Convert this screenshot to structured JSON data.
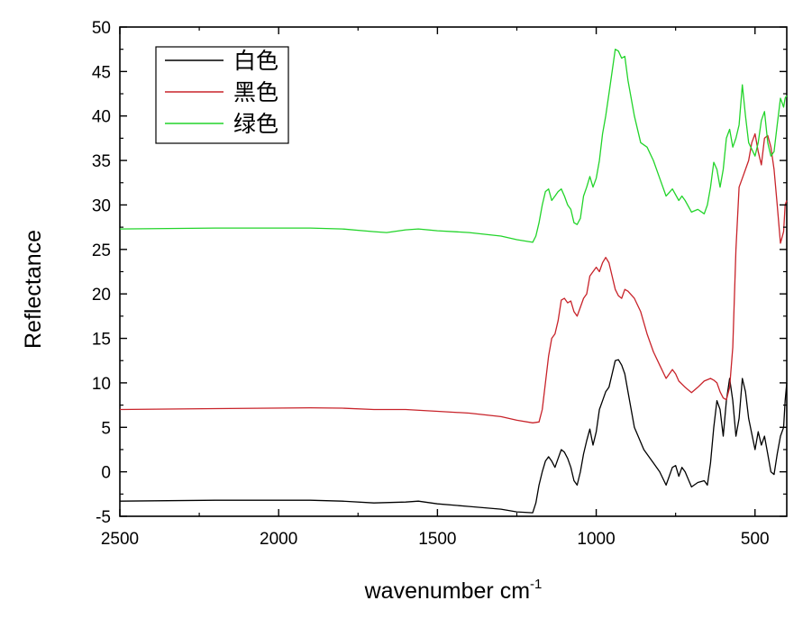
{
  "chart_data": {
    "type": "line",
    "xlabel": "wavenumber cm",
    "xlabel_superscript": "-1",
    "ylabel": "Reflectance",
    "xlim": [
      2500,
      400
    ],
    "ylim": [
      -5,
      50
    ],
    "x_reversed": true,
    "x_ticks": [
      2500,
      2000,
      1500,
      1000,
      500
    ],
    "y_ticks": [
      -5,
      0,
      5,
      10,
      15,
      20,
      25,
      30,
      35,
      40,
      45,
      50
    ],
    "legend_position": "top-left",
    "series": [
      {
        "name": "白色",
        "color": "#000000",
        "points": [
          [
            2500,
            -3.3
          ],
          [
            2200,
            -3.2
          ],
          [
            1900,
            -3.2
          ],
          [
            1800,
            -3.3
          ],
          [
            1700,
            -3.5
          ],
          [
            1600,
            -3.4
          ],
          [
            1560,
            -3.3
          ],
          [
            1500,
            -3.6
          ],
          [
            1400,
            -3.9
          ],
          [
            1300,
            -4.2
          ],
          [
            1250,
            -4.5
          ],
          [
            1200,
            -4.6
          ],
          [
            1190,
            -3.5
          ],
          [
            1180,
            -1.5
          ],
          [
            1170,
            0
          ],
          [
            1160,
            1.2
          ],
          [
            1150,
            1.7
          ],
          [
            1140,
            1.2
          ],
          [
            1130,
            0.5
          ],
          [
            1120,
            1.5
          ],
          [
            1110,
            2.5
          ],
          [
            1100,
            2.2
          ],
          [
            1090,
            1.5
          ],
          [
            1080,
            0.5
          ],
          [
            1070,
            -1
          ],
          [
            1060,
            -1.5
          ],
          [
            1050,
            0
          ],
          [
            1040,
            2
          ],
          [
            1030,
            3.5
          ],
          [
            1020,
            4.8
          ],
          [
            1010,
            3
          ],
          [
            1000,
            4.5
          ],
          [
            990,
            7
          ],
          [
            980,
            8
          ],
          [
            970,
            9
          ],
          [
            960,
            9.5
          ],
          [
            950,
            11
          ],
          [
            940,
            12.5
          ],
          [
            930,
            12.6
          ],
          [
            920,
            12
          ],
          [
            910,
            11
          ],
          [
            900,
            9
          ],
          [
            880,
            5
          ],
          [
            850,
            2.5
          ],
          [
            820,
            1
          ],
          [
            800,
            0
          ],
          [
            780,
            -1.5
          ],
          [
            760,
            0.5
          ],
          [
            750,
            0.7
          ],
          [
            740,
            -0.5
          ],
          [
            730,
            0.5
          ],
          [
            720,
            0
          ],
          [
            700,
            -1.7
          ],
          [
            680,
            -1.2
          ],
          [
            660,
            -1
          ],
          [
            650,
            -1.5
          ],
          [
            640,
            1
          ],
          [
            630,
            5
          ],
          [
            620,
            8
          ],
          [
            610,
            7
          ],
          [
            600,
            4
          ],
          [
            590,
            8
          ],
          [
            580,
            10.5
          ],
          [
            570,
            8
          ],
          [
            560,
            4
          ],
          [
            550,
            6
          ],
          [
            540,
            10.5
          ],
          [
            530,
            9
          ],
          [
            520,
            6
          ],
          [
            500,
            2.5
          ],
          [
            490,
            4.5
          ],
          [
            480,
            3
          ],
          [
            470,
            4
          ],
          [
            460,
            2
          ],
          [
            450,
            0
          ],
          [
            440,
            -0.3
          ],
          [
            430,
            2
          ],
          [
            420,
            4
          ],
          [
            410,
            5
          ],
          [
            405,
            8
          ],
          [
            400,
            10
          ]
        ]
      },
      {
        "name": "黑色",
        "color": "#c8232a",
        "points": [
          [
            2500,
            7
          ],
          [
            2200,
            7.1
          ],
          [
            1900,
            7.2
          ],
          [
            1800,
            7.15
          ],
          [
            1700,
            7
          ],
          [
            1600,
            7
          ],
          [
            1500,
            6.8
          ],
          [
            1400,
            6.6
          ],
          [
            1300,
            6.2
          ],
          [
            1250,
            5.8
          ],
          [
            1200,
            5.5
          ],
          [
            1180,
            5.6
          ],
          [
            1170,
            7
          ],
          [
            1160,
            10
          ],
          [
            1150,
            13
          ],
          [
            1140,
            15
          ],
          [
            1130,
            15.5
          ],
          [
            1120,
            17
          ],
          [
            1110,
            19.3
          ],
          [
            1100,
            19.5
          ],
          [
            1090,
            19
          ],
          [
            1080,
            19.2
          ],
          [
            1070,
            18
          ],
          [
            1060,
            17.5
          ],
          [
            1050,
            18.5
          ],
          [
            1040,
            19.5
          ],
          [
            1030,
            20
          ],
          [
            1020,
            22
          ],
          [
            1010,
            22.5
          ],
          [
            1000,
            23
          ],
          [
            990,
            22.5
          ],
          [
            980,
            23.5
          ],
          [
            970,
            24.1
          ],
          [
            960,
            23.5
          ],
          [
            950,
            22
          ],
          [
            940,
            20.5
          ],
          [
            930,
            19.8
          ],
          [
            920,
            19.5
          ],
          [
            910,
            20.5
          ],
          [
            900,
            20.3
          ],
          [
            880,
            19.5
          ],
          [
            860,
            18
          ],
          [
            840,
            15.5
          ],
          [
            820,
            13.5
          ],
          [
            800,
            12
          ],
          [
            780,
            10.5
          ],
          [
            760,
            11.5
          ],
          [
            750,
            11
          ],
          [
            740,
            10.2
          ],
          [
            720,
            9.5
          ],
          [
            700,
            8.9
          ],
          [
            680,
            9.5
          ],
          [
            660,
            10.2
          ],
          [
            640,
            10.5
          ],
          [
            630,
            10.3
          ],
          [
            620,
            10
          ],
          [
            610,
            9
          ],
          [
            600,
            8.3
          ],
          [
            590,
            8.1
          ],
          [
            580,
            9.5
          ],
          [
            570,
            14
          ],
          [
            560,
            25
          ],
          [
            550,
            32
          ],
          [
            540,
            33
          ],
          [
            530,
            34
          ],
          [
            520,
            35
          ],
          [
            510,
            37
          ],
          [
            500,
            38
          ],
          [
            490,
            36
          ],
          [
            480,
            34.5
          ],
          [
            470,
            37.5
          ],
          [
            460,
            37.8
          ],
          [
            450,
            36.5
          ],
          [
            440,
            34
          ],
          [
            430,
            30
          ],
          [
            420,
            25.7
          ],
          [
            410,
            27
          ],
          [
            405,
            30
          ],
          [
            400,
            30.5
          ]
        ]
      },
      {
        "name": "绿色",
        "color": "#22d42a",
        "points": [
          [
            2500,
            27.3
          ],
          [
            2200,
            27.4
          ],
          [
            1900,
            27.4
          ],
          [
            1800,
            27.3
          ],
          [
            1700,
            27
          ],
          [
            1660,
            26.9
          ],
          [
            1600,
            27.2
          ],
          [
            1560,
            27.3
          ],
          [
            1500,
            27.1
          ],
          [
            1400,
            26.9
          ],
          [
            1300,
            26.5
          ],
          [
            1250,
            26.1
          ],
          [
            1200,
            25.8
          ],
          [
            1190,
            26.5
          ],
          [
            1180,
            28
          ],
          [
            1170,
            30
          ],
          [
            1160,
            31.5
          ],
          [
            1150,
            31.8
          ],
          [
            1140,
            30.5
          ],
          [
            1130,
            31
          ],
          [
            1120,
            31.5
          ],
          [
            1110,
            31.8
          ],
          [
            1100,
            31
          ],
          [
            1090,
            30
          ],
          [
            1080,
            29.5
          ],
          [
            1070,
            28
          ],
          [
            1060,
            27.8
          ],
          [
            1050,
            28.5
          ],
          [
            1040,
            31
          ],
          [
            1030,
            32
          ],
          [
            1020,
            33.2
          ],
          [
            1010,
            32
          ],
          [
            1000,
            33
          ],
          [
            990,
            35
          ],
          [
            980,
            38
          ],
          [
            970,
            40
          ],
          [
            960,
            42.5
          ],
          [
            950,
            45
          ],
          [
            940,
            47.5
          ],
          [
            930,
            47.3
          ],
          [
            920,
            46.5
          ],
          [
            910,
            46.7
          ],
          [
            900,
            44
          ],
          [
            880,
            40
          ],
          [
            860,
            37
          ],
          [
            840,
            36.5
          ],
          [
            820,
            35
          ],
          [
            800,
            33
          ],
          [
            780,
            31
          ],
          [
            760,
            31.8
          ],
          [
            740,
            30.5
          ],
          [
            730,
            31
          ],
          [
            720,
            30.5
          ],
          [
            700,
            29.2
          ],
          [
            680,
            29.5
          ],
          [
            660,
            29
          ],
          [
            650,
            30
          ],
          [
            640,
            32
          ],
          [
            630,
            34.8
          ],
          [
            620,
            34
          ],
          [
            610,
            32
          ],
          [
            600,
            34
          ],
          [
            590,
            37.5
          ],
          [
            580,
            38.5
          ],
          [
            570,
            36.5
          ],
          [
            560,
            37.5
          ],
          [
            550,
            39
          ],
          [
            540,
            43.5
          ],
          [
            530,
            40
          ],
          [
            520,
            37
          ],
          [
            500,
            35.5
          ],
          [
            490,
            37
          ],
          [
            480,
            39.5
          ],
          [
            470,
            40.5
          ],
          [
            460,
            37
          ],
          [
            450,
            35.5
          ],
          [
            440,
            36
          ],
          [
            430,
            39
          ],
          [
            420,
            42
          ],
          [
            410,
            41
          ],
          [
            405,
            42
          ],
          [
            400,
            42.3
          ]
        ]
      }
    ]
  }
}
